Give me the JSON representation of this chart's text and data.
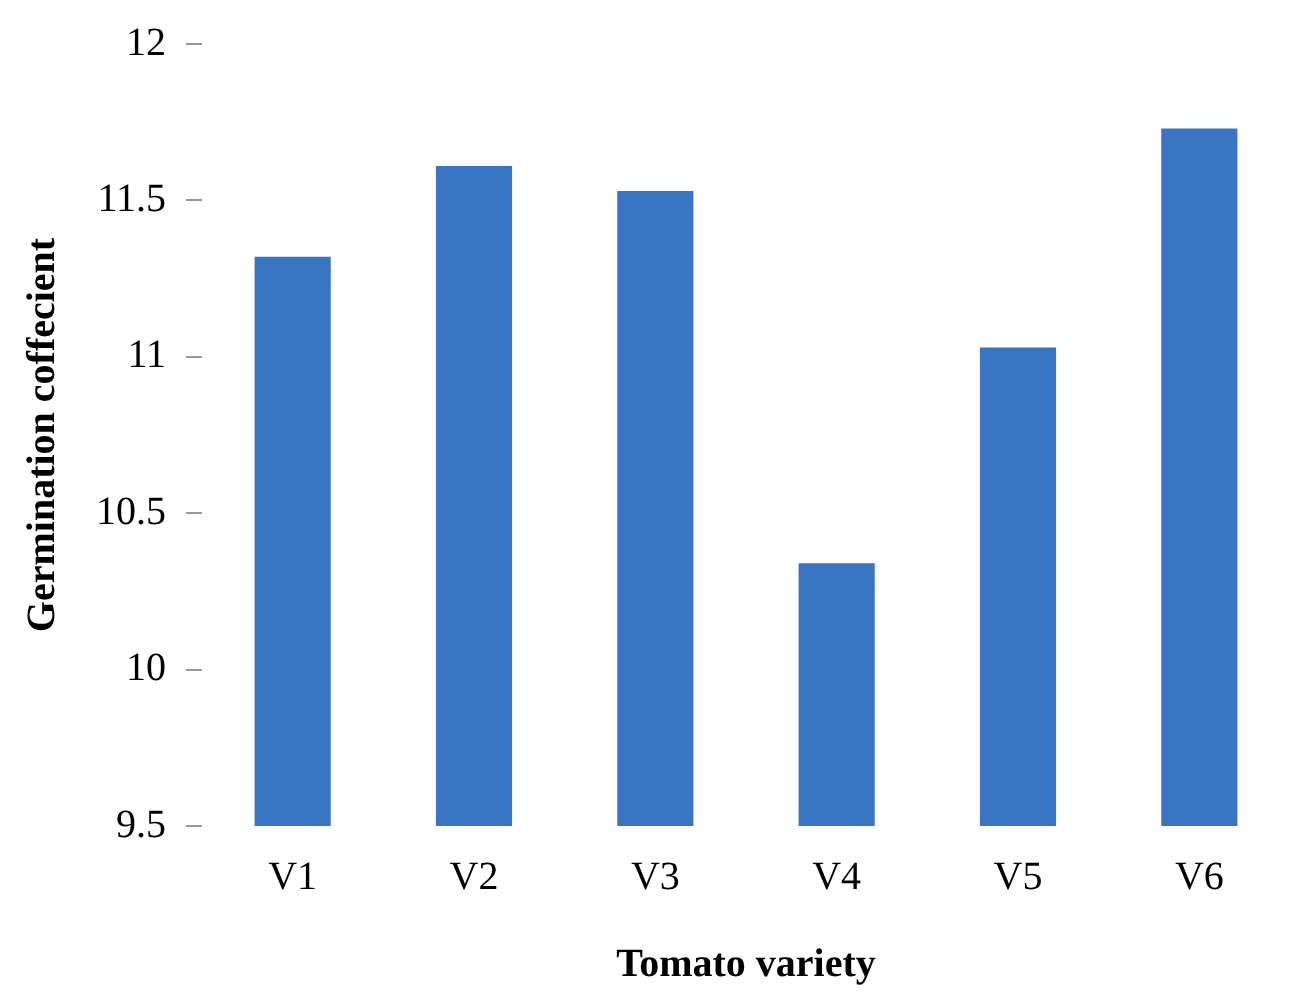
{
  "chart_data": {
    "type": "bar",
    "xlabel": "Tomato variety",
    "ylabel": "Germination coffecient",
    "categories": [
      "V1",
      "V2",
      "V3",
      "V4",
      "V5",
      "V6"
    ],
    "values": [
      11.32,
      11.61,
      11.53,
      10.34,
      11.03,
      11.73
    ],
    "color": "#3a75c4",
    "ylim": [
      9.5,
      12
    ],
    "yticks": [
      9.5,
      10,
      10.5,
      11,
      11.5,
      12
    ],
    "grid": false,
    "legend": false
  }
}
